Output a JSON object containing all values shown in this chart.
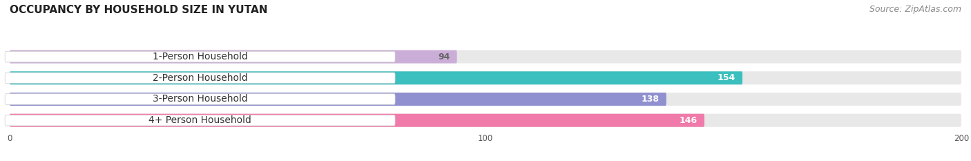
{
  "title": "OCCUPANCY BY HOUSEHOLD SIZE IN YUTAN",
  "source": "Source: ZipAtlas.com",
  "categories": [
    "1-Person Household",
    "2-Person Household",
    "3-Person Household",
    "4+ Person Household"
  ],
  "values": [
    94,
    154,
    138,
    146
  ],
  "bar_colors": [
    "#cbaed8",
    "#3bbfbf",
    "#9090d0",
    "#f07aaa"
  ],
  "bar_bg_color": "#e8e8e8",
  "value_label_colors": [
    "#666666",
    "#ffffff",
    "#ffffff",
    "#ffffff"
  ],
  "cat_label_color": "#333333",
  "xlim": [
    0,
    200
  ],
  "xticks": [
    0,
    100,
    200
  ],
  "title_fontsize": 11,
  "source_fontsize": 9,
  "cat_label_fontsize": 10,
  "bar_label_fontsize": 9,
  "background_color": "#ffffff",
  "bar_height": 0.62,
  "bar_gap": 0.38
}
